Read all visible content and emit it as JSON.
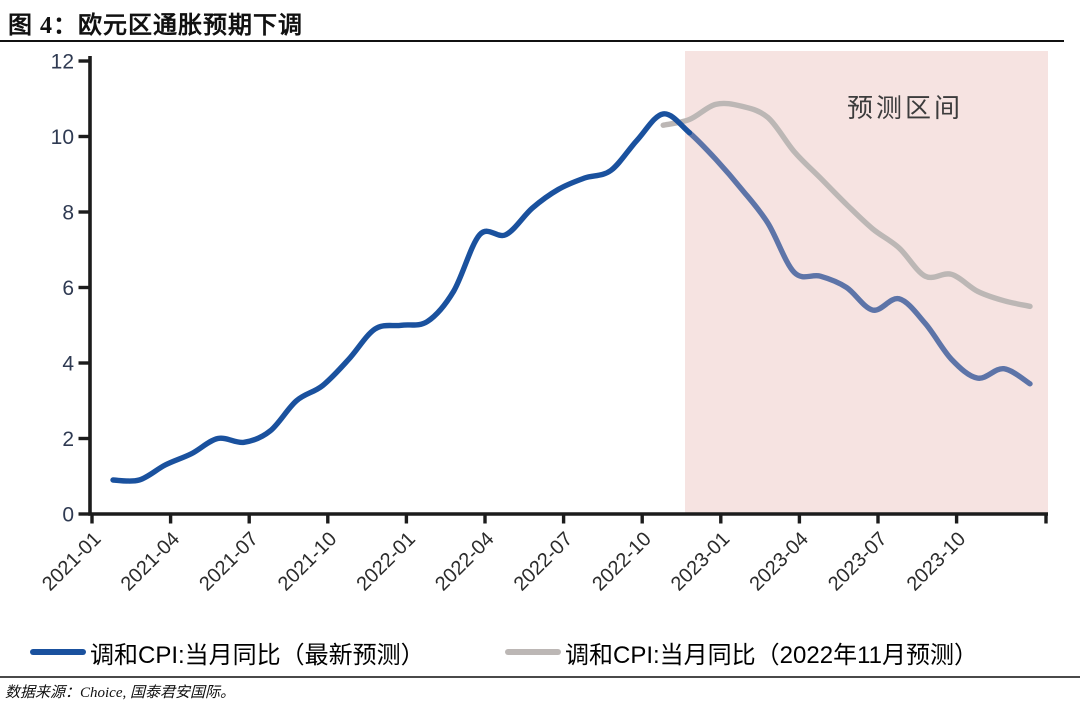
{
  "page": {
    "title": "图 4：欧元区通胀预期下调"
  },
  "chart_data": {
    "type": "line",
    "title": "图 4：欧元区通胀预期下调",
    "xlabel": "",
    "ylabel": "",
    "ylim": [
      0,
      12
    ],
    "y_ticks": [
      0,
      2,
      4,
      6,
      8,
      10,
      12
    ],
    "x_tick_labels": [
      "2021-01",
      "2021-04",
      "2021-07",
      "2021-10",
      "2022-01",
      "2022-04",
      "2022-07",
      "2022-10",
      "2023-01",
      "2023-04",
      "2023-07",
      "2023-10"
    ],
    "grid": "off",
    "legend_position": "bottom",
    "forecast_region": {
      "label": "预测区间",
      "starts_at": "2022-11",
      "color": "#f6e3e1",
      "label_color": "#3c3c3c"
    },
    "series": [
      {
        "name": "调和CPI:当月同比（最新预测）",
        "color": "#1a519e",
        "forecast_color": "#5d74a8",
        "forecast_from": "2022-11",
        "months": [
          "2021-01",
          "2021-02",
          "2021-03",
          "2021-04",
          "2021-05",
          "2021-06",
          "2021-07",
          "2021-08",
          "2021-09",
          "2021-10",
          "2021-11",
          "2021-12",
          "2022-01",
          "2022-02",
          "2022-03",
          "2022-04",
          "2022-05",
          "2022-06",
          "2022-07",
          "2022-08",
          "2022-09",
          "2022-10",
          "2022-11",
          "2022-12",
          "2023-01",
          "2023-02",
          "2023-03",
          "2023-04",
          "2023-05",
          "2023-06",
          "2023-07",
          "2023-08",
          "2023-09",
          "2023-10",
          "2023-11",
          "2023-12"
        ],
        "values": [
          0.9,
          0.9,
          1.3,
          1.6,
          2.0,
          1.9,
          2.2,
          3.0,
          3.4,
          4.1,
          4.9,
          5.0,
          5.1,
          5.9,
          7.4,
          7.4,
          8.1,
          8.6,
          8.9,
          9.1,
          9.9,
          10.6,
          10.1,
          9.4,
          8.6,
          7.7,
          6.4,
          6.3,
          6.0,
          5.4,
          5.7,
          5.05,
          4.1,
          3.6,
          3.85,
          3.45
        ]
      },
      {
        "name": "调和CPI:当月同比（2022年11月预测）",
        "color": "#bcb7b5",
        "months": [
          "2022-10",
          "2022-11",
          "2022-12",
          "2023-01",
          "2023-02",
          "2023-03",
          "2023-04",
          "2023-05",
          "2023-06",
          "2023-07",
          "2023-08",
          "2023-09",
          "2023-10",
          "2023-11",
          "2023-12"
        ],
        "values": [
          10.3,
          10.45,
          10.85,
          10.8,
          10.5,
          9.6,
          8.9,
          8.2,
          7.55,
          7.05,
          6.3,
          6.35,
          5.9,
          5.65,
          5.5
        ]
      }
    ],
    "axis_color": "#1c1c1c"
  },
  "footer": {
    "source": "数据来源：Choice, 国泰君安国际。"
  }
}
